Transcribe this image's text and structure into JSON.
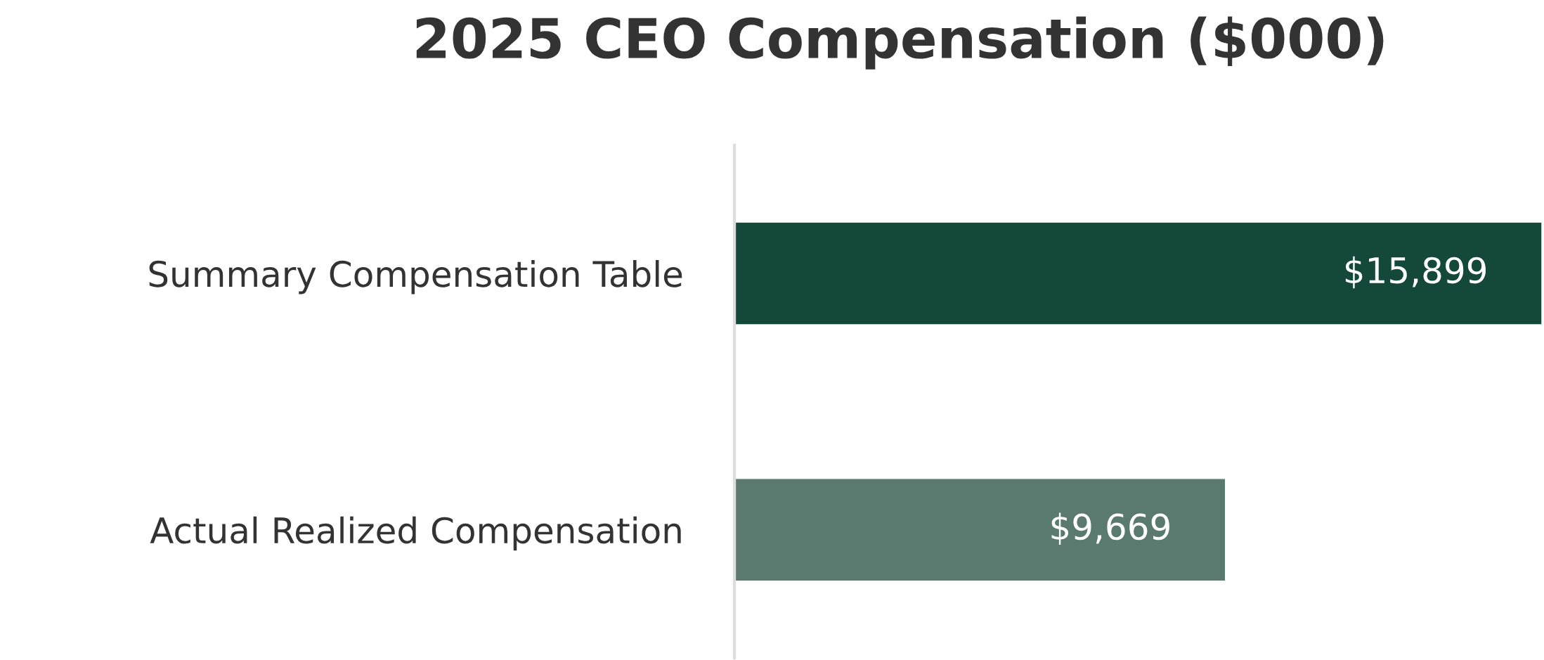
{
  "chart_data": {
    "type": "bar",
    "orientation": "horizontal",
    "title": "2025 CEO Compensation ($000)",
    "categories": [
      "Summary Compensation Table",
      "Actual Realized Compensation"
    ],
    "values": [
      15899,
      9669
    ],
    "colors": [
      "#14483a",
      "#5a7a70"
    ],
    "value_labels": [
      "$15,899",
      "$9,669"
    ],
    "tick_labels": "y",
    "grid": false,
    "legend": false
  }
}
